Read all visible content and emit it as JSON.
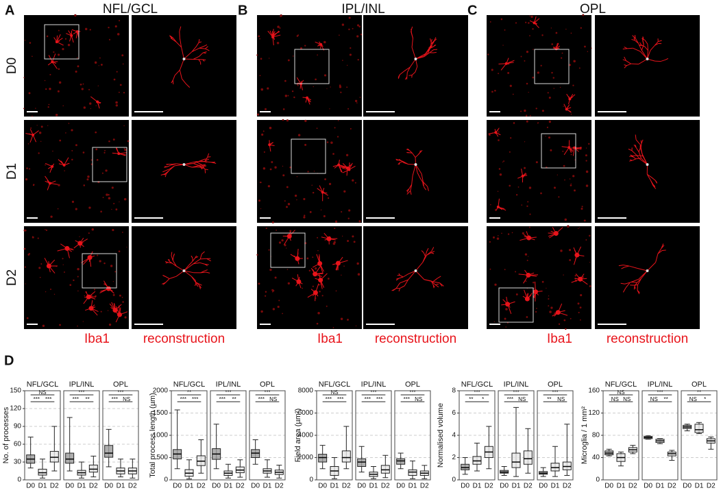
{
  "figure": {
    "row_labels": [
      "D0",
      "D1",
      "D2"
    ],
    "panels": [
      {
        "letter": "A",
        "title": "NFL/GCL",
        "footer": [
          "Iba1",
          "reconstruction"
        ]
      },
      {
        "letter": "B",
        "title": "IPL/INL",
        "footer": [
          "Iba1",
          "reconstruction"
        ]
      },
      {
        "letter": "C",
        "title": "OPL",
        "footer": [
          "Iba1",
          "reconstruction"
        ]
      }
    ],
    "panel_d_letter": "D"
  },
  "chart_data": [
    {
      "type": "box",
      "ylabel": "No. of processes",
      "ylim": [
        0,
        150
      ],
      "yticks": [
        0,
        30,
        60,
        90,
        120,
        150
      ],
      "grid": true,
      "categories": [
        "D0",
        "D1",
        "D2"
      ],
      "facets": [
        {
          "name": "NFL/GCL",
          "significance": [
            "NS",
            "***",
            "***"
          ],
          "boxes": [
            {
              "median": 35,
              "q1": 28,
              "q3": 42,
              "min": 20,
              "max": 72
            },
            {
              "median": 12,
              "q1": 8,
              "q3": 18,
              "min": 3,
              "max": 35
            },
            {
              "median": 38,
              "q1": 30,
              "q3": 48,
              "min": 15,
              "max": 90
            }
          ]
        },
        {
          "name": "IPL/INL",
          "significance": [
            "***",
            "***",
            "**"
          ],
          "boxes": [
            {
              "median": 35,
              "q1": 28,
              "q3": 45,
              "min": 15,
              "max": 105
            },
            {
              "median": 12,
              "q1": 8,
              "q3": 16,
              "min": 3,
              "max": 30
            },
            {
              "median": 18,
              "q1": 13,
              "q3": 25,
              "min": 5,
              "max": 40
            }
          ]
        },
        {
          "name": "OPL",
          "significance": [
            "***",
            "***",
            "NS"
          ],
          "boxes": [
            {
              "median": 45,
              "q1": 38,
              "q3": 58,
              "min": 22,
              "max": 85
            },
            {
              "median": 15,
              "q1": 10,
              "q3": 20,
              "min": 5,
              "max": 35
            },
            {
              "median": 15,
              "q1": 10,
              "q3": 20,
              "min": 3,
              "max": 35
            }
          ]
        }
      ]
    },
    {
      "type": "box",
      "ylabel": "Total process length (µm)",
      "ylim": [
        0,
        2000
      ],
      "yticks": [
        0,
        500,
        1000,
        1500,
        2000
      ],
      "grid": true,
      "categories": [
        "D0",
        "D1",
        "D2"
      ],
      "facets": [
        {
          "name": "NFL/GCL",
          "significance": [
            "**",
            "***",
            "***"
          ],
          "boxes": [
            {
              "median": 580,
              "q1": 470,
              "q3": 680,
              "min": 250,
              "max": 1570
            },
            {
              "median": 150,
              "q1": 80,
              "q3": 230,
              "min": 20,
              "max": 450
            },
            {
              "median": 420,
              "q1": 320,
              "q3": 540,
              "min": 150,
              "max": 900
            }
          ]
        },
        {
          "name": "IPL/INL",
          "significance": [
            "***",
            "***",
            "**"
          ],
          "boxes": [
            {
              "median": 580,
              "q1": 460,
              "q3": 700,
              "min": 250,
              "max": 1250
            },
            {
              "median": 150,
              "q1": 100,
              "q3": 200,
              "min": 40,
              "max": 350
            },
            {
              "median": 220,
              "q1": 160,
              "q3": 290,
              "min": 60,
              "max": 450
            }
          ]
        },
        {
          "name": "OPL",
          "significance": [
            "***",
            "***",
            "NS"
          ],
          "boxes": [
            {
              "median": 600,
              "q1": 500,
              "q3": 680,
              "min": 350,
              "max": 900
            },
            {
              "median": 200,
              "q1": 150,
              "q3": 250,
              "min": 60,
              "max": 450
            },
            {
              "median": 170,
              "q1": 120,
              "q3": 220,
              "min": 40,
              "max": 330
            }
          ]
        }
      ]
    },
    {
      "type": "box",
      "ylabel": "Field area (µm²)",
      "ylim": [
        0,
        8000
      ],
      "yticks": [
        0,
        2000,
        4000,
        6000,
        8000
      ],
      "grid": true,
      "categories": [
        "D0",
        "D1",
        "D2"
      ],
      "facets": [
        {
          "name": "NFL/GCL",
          "significance": [
            "NS",
            "***",
            "***"
          ],
          "boxes": [
            {
              "median": 2000,
              "q1": 1600,
              "q3": 2300,
              "min": 1000,
              "max": 3100
            },
            {
              "median": 800,
              "q1": 400,
              "q3": 1200,
              "min": 100,
              "max": 2000
            },
            {
              "median": 2000,
              "q1": 1600,
              "q3": 2600,
              "min": 1000,
              "max": 4800
            }
          ]
        },
        {
          "name": "IPL/INL",
          "significance": [
            "***",
            "***",
            "***"
          ],
          "boxes": [
            {
              "median": 1600,
              "q1": 1200,
              "q3": 1900,
              "min": 700,
              "max": 3000
            },
            {
              "median": 500,
              "q1": 300,
              "q3": 700,
              "min": 100,
              "max": 1200
            },
            {
              "median": 900,
              "q1": 600,
              "q3": 1300,
              "min": 200,
              "max": 2200
            }
          ]
        },
        {
          "name": "OPL",
          "significance": [
            "***",
            "***",
            "NS"
          ],
          "boxes": [
            {
              "median": 1700,
              "q1": 1400,
              "q3": 1900,
              "min": 1000,
              "max": 2400
            },
            {
              "median": 700,
              "q1": 400,
              "q3": 900,
              "min": 100,
              "max": 1700
            },
            {
              "median": 600,
              "q1": 400,
              "q3": 800,
              "min": 100,
              "max": 1300
            }
          ]
        }
      ]
    },
    {
      "type": "box",
      "ylabel": "Normalised volume",
      "ylim": [
        0,
        8
      ],
      "yticks": [
        0,
        2,
        4,
        6,
        8
      ],
      "grid": true,
      "categories": [
        "D0",
        "D1",
        "D2"
      ],
      "facets": [
        {
          "name": "NFL/GCL",
          "significance": [
            "***",
            "**",
            "*"
          ],
          "boxes": [
            {
              "median": 1.1,
              "q1": 0.9,
              "q3": 1.4,
              "min": 0.5,
              "max": 2
            },
            {
              "median": 1.7,
              "q1": 1.4,
              "q3": 2.1,
              "min": 0.8,
              "max": 3.3
            },
            {
              "median": 2.5,
              "q1": 2.0,
              "q3": 3.0,
              "min": 1.0,
              "max": 4.8
            }
          ]
        },
        {
          "name": "IPL/INL",
          "significance": [
            "***",
            "***",
            "NS"
          ],
          "boxes": [
            {
              "median": 0.7,
              "q1": 0.6,
              "q3": 0.85,
              "min": 0.4,
              "max": 1.2
            },
            {
              "median": 1.6,
              "q1": 1.1,
              "q3": 2.4,
              "min": 0.3,
              "max": 6.5
            },
            {
              "median": 1.9,
              "q1": 1.4,
              "q3": 2.6,
              "min": 0.6,
              "max": 4.6
            }
          ]
        },
        {
          "name": "OPL",
          "significance": [
            "***",
            "**",
            "NS"
          ],
          "boxes": [
            {
              "median": 0.6,
              "q1": 0.5,
              "q3": 0.75,
              "min": 0.3,
              "max": 1.1
            },
            {
              "median": 1.1,
              "q1": 0.8,
              "q3": 1.5,
              "min": 0.3,
              "max": 3.0
            },
            {
              "median": 1.2,
              "q1": 0.9,
              "q3": 1.6,
              "min": 0.4,
              "max": 5.0
            }
          ]
        }
      ]
    },
    {
      "type": "box",
      "ylabel": "Microglia / 1 mm²",
      "ylim": [
        0,
        160
      ],
      "yticks": [
        0,
        40,
        80,
        120,
        160
      ],
      "grid": true,
      "categories": [
        "D0",
        "D1",
        "D2"
      ],
      "facets": [
        {
          "name": "NFL/GCL",
          "significance": [
            "NS",
            "NS",
            "NS"
          ],
          "boxes": [
            {
              "median": 48,
              "q1": 45,
              "q3": 52,
              "min": 43,
              "max": 55
            },
            {
              "median": 40,
              "q1": 33,
              "q3": 47,
              "min": 25,
              "max": 50
            },
            {
              "median": 54,
              "q1": 50,
              "q3": 58,
              "min": 47,
              "max": 62
            }
          ]
        },
        {
          "name": "IPL/INL",
          "significance": [
            "***",
            "NS",
            "**"
          ],
          "boxes": [
            {
              "median": 76,
              "q1": 74,
              "q3": 78,
              "min": 73,
              "max": 79
            },
            {
              "median": 70,
              "q1": 67,
              "q3": 73,
              "min": 65,
              "max": 74
            },
            {
              "median": 47,
              "q1": 43,
              "q3": 50,
              "min": 35,
              "max": 53
            }
          ]
        },
        {
          "name": "OPL",
          "significance": [
            "**",
            "NS",
            "*"
          ],
          "boxes": [
            {
              "median": 95,
              "q1": 92,
              "q3": 98,
              "min": 88,
              "max": 100
            },
            {
              "median": 90,
              "q1": 85,
              "q3": 100,
              "min": 83,
              "max": 103
            },
            {
              "median": 70,
              "q1": 66,
              "q3": 74,
              "min": 55,
              "max": 77
            }
          ]
        }
      ]
    }
  ]
}
